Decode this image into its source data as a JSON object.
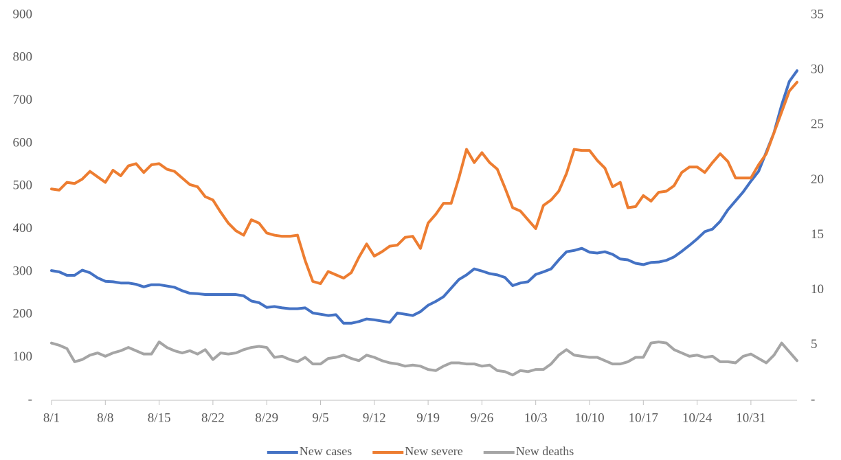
{
  "chart_data": {
    "type": "line",
    "categories": [
      "8/1",
      null,
      null,
      null,
      null,
      null,
      null,
      "8/8",
      null,
      null,
      null,
      null,
      null,
      null,
      "8/15",
      null,
      null,
      null,
      null,
      null,
      null,
      "8/22",
      null,
      null,
      null,
      null,
      null,
      null,
      "8/29",
      null,
      null,
      null,
      null,
      null,
      null,
      "9/5",
      null,
      null,
      null,
      null,
      null,
      null,
      "9/12",
      null,
      null,
      null,
      null,
      null,
      null,
      "9/19",
      null,
      null,
      null,
      null,
      null,
      null,
      "9/26",
      null,
      null,
      null,
      null,
      null,
      null,
      "10/3",
      null,
      null,
      null,
      null,
      null,
      null,
      "10/10",
      null,
      null,
      null,
      null,
      null,
      null,
      "10/17",
      null,
      null,
      null,
      null,
      null,
      null,
      "10/24",
      null,
      null,
      null,
      null,
      null,
      null,
      "10/31",
      null,
      null,
      null,
      null,
      null,
      null
    ],
    "series": [
      {
        "name": "New cases",
        "color": "#4472c4",
        "values": [
          303,
          300,
          292,
          292,
          304,
          298,
          286,
          278,
          277,
          274,
          274,
          271,
          265,
          270,
          270,
          267,
          264,
          256,
          250,
          249,
          247,
          247,
          247,
          247,
          247,
          244,
          232,
          228,
          217,
          219,
          216,
          214,
          214,
          216,
          204,
          201,
          198,
          200,
          180,
          180,
          184,
          190,
          188,
          185,
          182,
          204,
          201,
          198,
          207,
          222,
          231,
          242,
          262,
          282,
          293,
          307,
          302,
          296,
          293,
          287,
          268,
          274,
          277,
          294,
          300,
          307,
          328,
          347,
          350,
          355,
          346,
          344,
          347,
          341,
          330,
          328,
          320,
          317,
          322,
          323,
          327,
          335,
          348,
          362,
          377,
          394,
          400,
          418,
          445,
          466,
          487,
          512,
          535,
          580,
          625,
          690,
          745,
          770
        ]
      },
      {
        "name": "New severe",
        "color": "#ed7d31",
        "axis": "y2",
        "values": [
          19.2,
          19.1,
          19.8,
          19.7,
          20.1,
          20.8,
          20.3,
          19.8,
          20.9,
          20.4,
          21.3,
          21.5,
          20.7,
          21.4,
          21.5,
          21.0,
          20.8,
          20.2,
          19.6,
          19.4,
          18.5,
          18.2,
          17.1,
          16.1,
          15.4,
          15.0,
          16.4,
          16.1,
          15.2,
          15.0,
          14.9,
          14.9,
          15.0,
          12.7,
          10.8,
          10.6,
          11.7,
          11.4,
          11.1,
          11.6,
          13.0,
          14.2,
          13.1,
          13.5,
          14.0,
          14.1,
          14.8,
          14.9,
          13.8,
          16.1,
          16.9,
          17.9,
          17.9,
          20.2,
          22.8,
          21.6,
          22.5,
          21.6,
          21.0,
          19.3,
          17.5,
          17.2,
          16.4,
          15.6,
          17.7,
          18.2,
          19.0,
          20.6,
          22.8,
          22.7,
          22.7,
          21.8,
          21.1,
          19.4,
          19.8,
          17.5,
          17.6,
          18.6,
          18.1,
          18.9,
          19.0,
          19.5,
          20.7,
          21.2,
          21.2,
          20.7,
          21.6,
          22.4,
          21.7,
          20.2,
          20.2,
          20.2,
          21.4,
          22.4,
          24.3,
          26.2,
          28.1,
          28.9
        ]
      },
      {
        "name": "New deaths",
        "color": "#a5a5a5",
        "axis": "y2",
        "values": [
          5.2,
          5.0,
          4.7,
          3.5,
          3.7,
          4.1,
          4.3,
          4.0,
          4.3,
          4.5,
          4.8,
          4.5,
          4.2,
          4.2,
          5.3,
          4.8,
          4.5,
          4.3,
          4.5,
          4.2,
          4.6,
          3.7,
          4.3,
          4.2,
          4.3,
          4.6,
          4.8,
          4.9,
          4.8,
          3.9,
          4.0,
          3.7,
          3.5,
          3.9,
          3.3,
          3.3,
          3.8,
          3.9,
          4.1,
          3.8,
          3.6,
          4.1,
          3.9,
          3.6,
          3.4,
          3.3,
          3.1,
          3.2,
          3.1,
          2.8,
          2.7,
          3.1,
          3.4,
          3.4,
          3.3,
          3.3,
          3.1,
          3.2,
          2.7,
          2.6,
          2.3,
          2.7,
          2.6,
          2.8,
          2.8,
          3.3,
          4.1,
          4.6,
          4.1,
          4.0,
          3.9,
          3.9,
          3.6,
          3.3,
          3.3,
          3.5,
          3.9,
          3.9,
          5.2,
          5.3,
          5.2,
          4.6,
          4.3,
          4.0,
          4.1,
          3.9,
          4.0,
          3.5,
          3.5,
          3.4,
          4.0,
          4.2,
          3.8,
          3.4,
          4.1,
          5.2,
          4.4,
          3.6
        ]
      }
    ],
    "ylim": [
      0,
      900
    ],
    "yticks": [
      {
        "value": 0,
        "label": "-"
      },
      100,
      200,
      300,
      400,
      500,
      600,
      700,
      800,
      900
    ],
    "y2lim": [
      0,
      35
    ],
    "y2ticks": [
      {
        "value": 0,
        "label": "-"
      },
      5,
      10,
      15,
      20,
      25,
      30,
      35
    ]
  }
}
